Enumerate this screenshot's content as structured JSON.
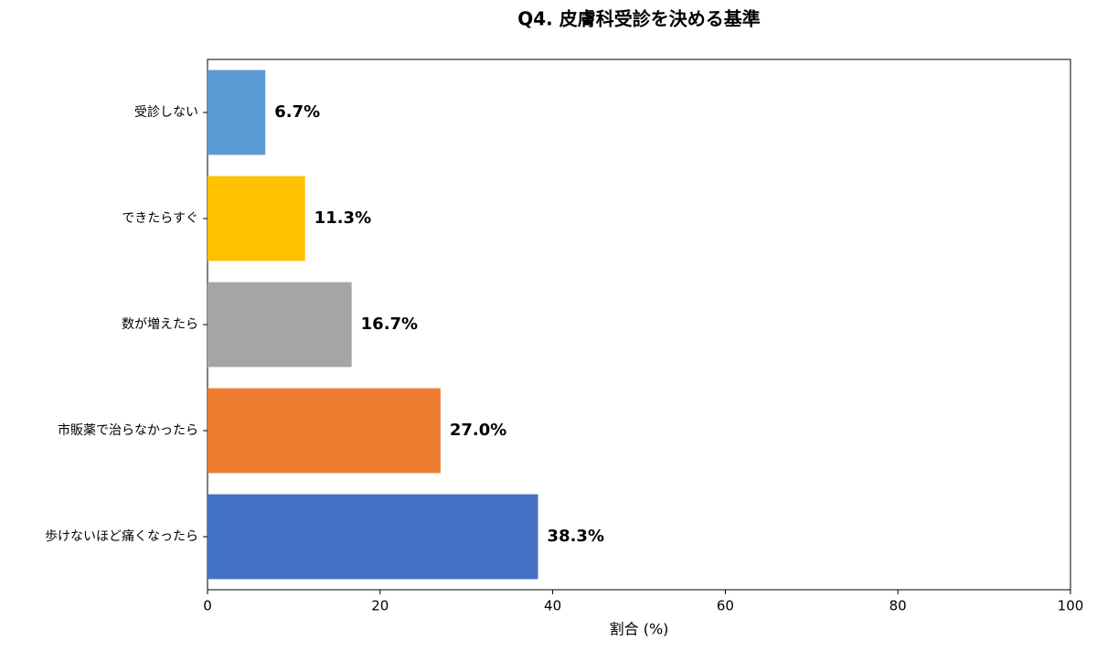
{
  "chart_data": {
    "type": "bar",
    "orientation": "horizontal",
    "title": "Q4. 皮膚科受診を決める基準",
    "categories": [
      "受診しない",
      "できたらすぐ",
      "数が増えたら",
      "市販薬で治らなかったら",
      "歩けないほど痛くなったら"
    ],
    "values": [
      6.7,
      11.3,
      16.7,
      27.0,
      38.3
    ],
    "value_labels": [
      "6.7%",
      "11.3%",
      "16.7%",
      "27.0%",
      "38.3%"
    ],
    "colors": [
      "#5b9bd5",
      "#ffc000",
      "#a5a5a5",
      "#ed7d31",
      "#4472c4"
    ],
    "xlabel": "割合 (%)",
    "xlim": [
      0,
      100
    ],
    "xticks": [
      0,
      20,
      40,
      60,
      80,
      100
    ],
    "grid": false
  }
}
